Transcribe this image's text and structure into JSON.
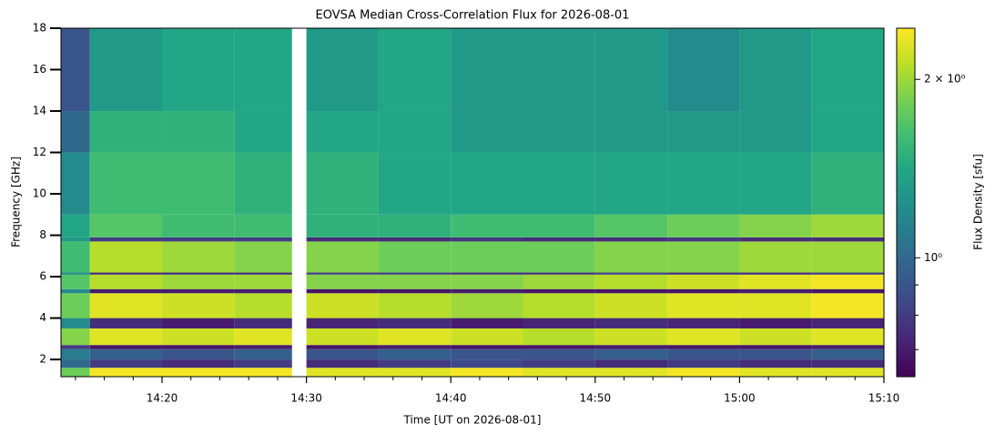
{
  "chart_data": {
    "type": "heatmap",
    "title": "EOVSA Median Cross-Correlation Flux for 2026-08-01",
    "x_label": "Time [UT on 2026-08-01]",
    "y_label": "Frequency [GHz]",
    "colorbar_label": "Flux Density [sfu]",
    "colormap": "viridis",
    "color_scale": "log",
    "xlim": [
      "14:13",
      "15:10"
    ],
    "xticks": [
      "14:20",
      "14:30",
      "14:40",
      "14:50",
      "15:00",
      "15:10"
    ],
    "xminorticks": [
      "14:14",
      "14:16",
      "14:18",
      "14:22",
      "14:24",
      "14:26",
      "14:28",
      "14:32",
      "14:34",
      "14:36",
      "14:38",
      "14:42",
      "14:44",
      "14:46",
      "14:48",
      "14:52",
      "14:54",
      "14:56",
      "14:58",
      "15:02",
      "15:04",
      "15:06",
      "15:08"
    ],
    "ylim": [
      1.17,
      18
    ],
    "yticks": [
      2,
      4,
      6,
      8,
      10,
      12,
      14,
      16,
      18
    ],
    "clim": [
      0.63,
      2.44
    ],
    "cticks": [
      {
        "value": 2,
        "label": "2 × 10⁰"
      },
      {
        "value": 1,
        "label": "10⁰"
      }
    ],
    "cminorticks": [
      0.7,
      0.8,
      0.9
    ],
    "x_edges": [
      "14:13",
      "14:15",
      "14:20",
      "14:25",
      "14:29",
      "14:30",
      "14:35",
      "14:40",
      "14:45",
      "14:50",
      "14:55",
      "15:00",
      "15:05",
      "15:10"
    ],
    "y_edges": [
      1.17,
      1.6,
      2.0,
      2.5,
      2.7,
      3.5,
      4.0,
      5.2,
      5.4,
      6.1,
      6.2,
      7.7,
      7.9,
      9.0,
      12.0,
      14.0,
      18.0
    ],
    "z": [
      [
        1.8,
        2.4,
        2.4,
        2.4,
        null,
        2.3,
        2.3,
        2.4,
        2.3,
        2.3,
        2.4,
        2.3,
        2.3
      ],
      [
        1.0,
        0.8,
        0.75,
        0.8,
        null,
        0.75,
        0.8,
        0.85,
        0.8,
        0.75,
        0.8,
        0.75,
        0.75
      ],
      [
        1.1,
        0.95,
        0.9,
        0.95,
        null,
        0.9,
        0.95,
        0.9,
        0.9,
        0.95,
        0.9,
        0.9,
        0.95
      ],
      [
        0.8,
        0.68,
        0.68,
        0.7,
        null,
        0.68,
        0.7,
        0.68,
        0.68,
        0.7,
        0.68,
        0.68,
        0.7
      ],
      [
        1.9,
        2.3,
        2.2,
        2.3,
        null,
        2.2,
        2.3,
        2.2,
        2.1,
        2.2,
        2.3,
        2.2,
        2.3
      ],
      [
        1.2,
        0.75,
        0.7,
        0.75,
        null,
        0.72,
        0.75,
        0.7,
        0.72,
        0.75,
        0.72,
        0.7,
        0.72
      ],
      [
        1.8,
        2.3,
        2.2,
        2.1,
        null,
        2.2,
        2.1,
        2.0,
        2.1,
        2.2,
        2.3,
        2.3,
        2.4
      ],
      [
        1.2,
        0.7,
        0.7,
        0.7,
        null,
        0.68,
        0.68,
        0.7,
        0.68,
        0.68,
        0.68,
        0.7,
        0.68
      ],
      [
        1.7,
        2.1,
        2.0,
        2.0,
        null,
        1.9,
        1.9,
        1.9,
        2.0,
        2.1,
        2.2,
        2.3,
        2.4
      ],
      [
        1.2,
        0.75,
        0.75,
        0.75,
        null,
        0.8,
        0.8,
        0.75,
        0.75,
        0.8,
        0.75,
        0.75,
        0.8
      ],
      [
        1.6,
        2.1,
        2.0,
        1.9,
        null,
        1.9,
        1.8,
        1.8,
        1.8,
        1.9,
        1.9,
        2.0,
        2.0
      ],
      [
        1.3,
        0.8,
        0.8,
        0.8,
        null,
        0.75,
        0.75,
        0.78,
        0.75,
        0.75,
        0.78,
        0.75,
        0.75
      ],
      [
        1.4,
        1.7,
        1.6,
        1.6,
        null,
        1.5,
        1.5,
        1.6,
        1.6,
        1.7,
        1.8,
        1.9,
        2.0
      ],
      [
        1.2,
        1.6,
        1.6,
        1.5,
        null,
        1.5,
        1.4,
        1.4,
        1.4,
        1.4,
        1.4,
        1.4,
        1.5
      ],
      [
        1.0,
        1.5,
        1.5,
        1.4,
        null,
        1.4,
        1.4,
        1.3,
        1.3,
        1.3,
        1.3,
        1.3,
        1.4
      ],
      [
        0.9,
        1.3,
        1.4,
        1.4,
        null,
        1.3,
        1.4,
        1.3,
        1.3,
        1.3,
        1.2,
        1.3,
        1.4
      ]
    ]
  }
}
